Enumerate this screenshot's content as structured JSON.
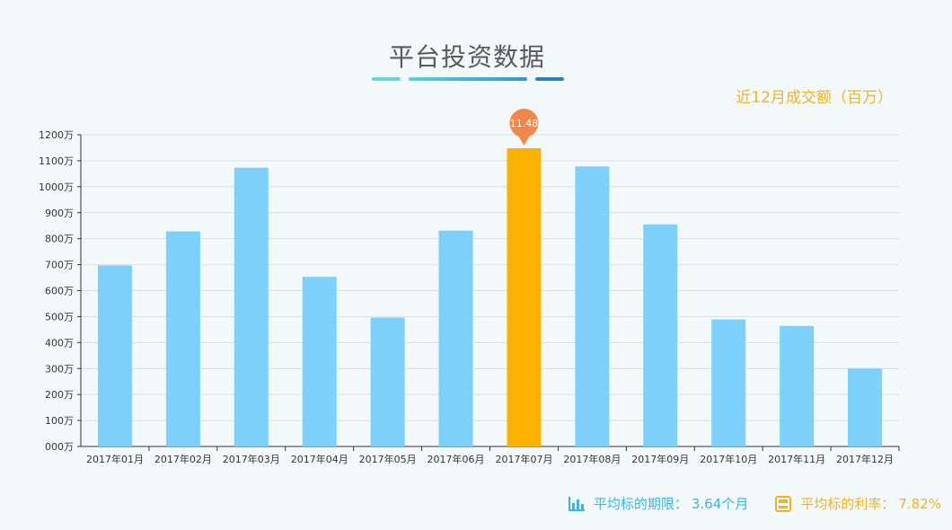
{
  "header": {
    "title": "平台投资数据",
    "subtitle": "近12月成交额（百万）"
  },
  "colors": {
    "bar": "#7dd0fa",
    "bar_highlight": "#fdb200",
    "pin": "#f0884c",
    "axis": "#333333",
    "grid": "#d8dee2",
    "title": "#5a5a5a",
    "accent_yellow": "#efb425",
    "accent_blue": "#3ab6e4"
  },
  "chart_data": {
    "type": "bar",
    "categories": [
      "2017年01月",
      "2017年02月",
      "2017年03月",
      "2017年04月",
      "2017年05月",
      "2017年06月",
      "2017年07月",
      "2017年08月",
      "2017年09月",
      "2017年10月",
      "2017年11月",
      "2017年12月"
    ],
    "values": [
      697,
      828,
      1073,
      653,
      496,
      831,
      1148,
      1078,
      855,
      489,
      464,
      300
    ],
    "ylim": [
      0,
      1200
    ],
    "y_ticks": [
      "000万",
      "100万",
      "200万",
      "300万",
      "400万",
      "500万",
      "600万",
      "700万",
      "800万",
      "900万",
      "1000万",
      "1100万",
      "1200万"
    ],
    "highlight_index": 6,
    "highlight_label": "11.48",
    "grid": true
  },
  "footer": {
    "period_label": "平均标的期限：",
    "period_value": "3.64个月",
    "rate_label": "平均标的利率：",
    "rate_value": "7.82%"
  }
}
